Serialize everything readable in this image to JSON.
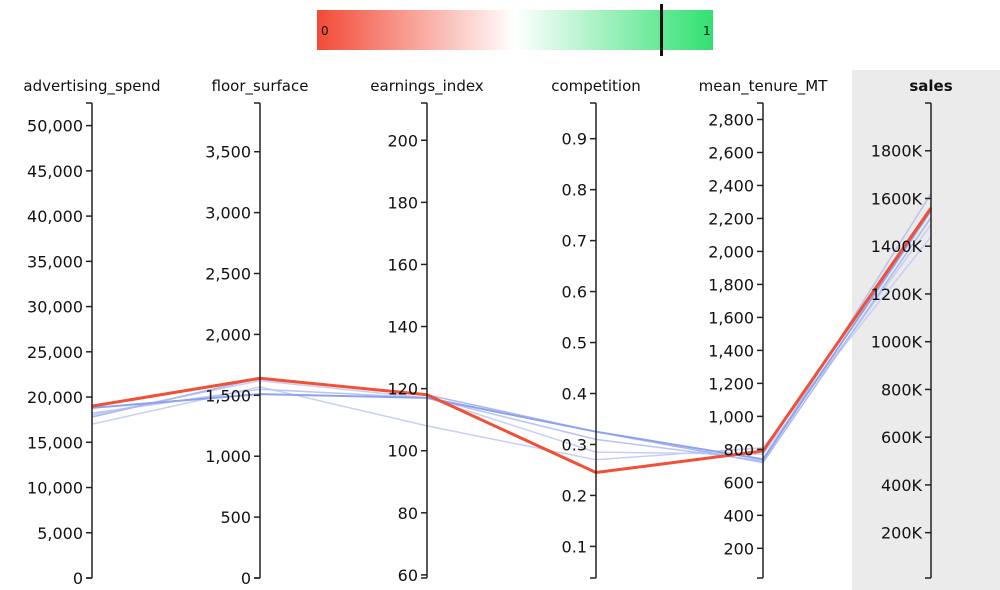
{
  "chart_data": {
    "type": "parallel_coordinates",
    "colorbar": {
      "min_label": "0",
      "max_label": "1",
      "marker_value": 0.87,
      "stops": [
        "#f24a37",
        "#ffffff",
        "#31e072"
      ]
    },
    "highlighted_axis": "sales",
    "axes": [
      {
        "key": "advertising_spend",
        "label": "advertising_spend",
        "range": [
          0,
          52500
        ],
        "ticks": [
          0,
          5000,
          10000,
          15000,
          20000,
          25000,
          30000,
          35000,
          40000,
          45000,
          50000
        ],
        "tick_labels": [
          "0",
          "5,000",
          "10,000",
          "15,000",
          "20,000",
          "25,000",
          "30,000",
          "35,000",
          "40,000",
          "45,000",
          "50,000"
        ],
        "tick_side": "left"
      },
      {
        "key": "floor_surface",
        "label": "floor_surface",
        "range": [
          0,
          3900
        ],
        "ticks": [
          0,
          500,
          1000,
          1500,
          2000,
          2500,
          3000,
          3500
        ],
        "tick_labels": [
          "0",
          "500",
          "1,000",
          "1,500",
          "2,000",
          "2,500",
          "3,000",
          "3,500"
        ],
        "tick_side": "left"
      },
      {
        "key": "earnings_index",
        "label": "earnings_index",
        "range": [
          59,
          212
        ],
        "ticks": [
          60,
          80,
          100,
          120,
          140,
          160,
          180,
          200
        ],
        "tick_labels": [
          "60",
          "80",
          "100",
          "120",
          "140",
          "160",
          "180",
          "200"
        ],
        "tick_side": "left"
      },
      {
        "key": "competition",
        "label": "competition",
        "range": [
          0.038,
          0.97
        ],
        "ticks": [
          0.1,
          0.2,
          0.3,
          0.4,
          0.5,
          0.6,
          0.7,
          0.8,
          0.9
        ],
        "tick_labels": [
          "0.1",
          "0.2",
          "0.3",
          "0.4",
          "0.5",
          "0.6",
          "0.7",
          "0.8",
          "0.9"
        ],
        "tick_side": "left"
      },
      {
        "key": "mean_tenure_MT",
        "label": "mean_tenure_MT",
        "range": [
          20,
          2900
        ],
        "ticks": [
          200,
          400,
          600,
          800,
          1000,
          1200,
          1400,
          1600,
          1800,
          2000,
          2200,
          2400,
          2600,
          2800
        ],
        "tick_labels": [
          "200",
          "400",
          "600",
          "800",
          "1,000",
          "1,200",
          "1,400",
          "1,600",
          "1,800",
          "2,000",
          "2,200",
          "2,400",
          "2,600",
          "2,800"
        ],
        "tick_side": "left"
      },
      {
        "key": "sales",
        "label": "sales",
        "range": [
          10000,
          2000000
        ],
        "ticks": [
          200000,
          400000,
          600000,
          800000,
          1000000,
          1200000,
          1400000,
          1600000,
          1800000
        ],
        "tick_labels": [
          "200K",
          "400K",
          "600K",
          "800K",
          "1000K",
          "1200K",
          "1400K",
          "1600K",
          "1800K"
        ],
        "tick_side": "left"
      }
    ],
    "lines": [
      {
        "values": [
          17000,
          1570,
          108,
          0.27,
          810,
          1440000
        ],
        "color": "#c6cff4",
        "width": 1.5
      },
      {
        "values": [
          18000,
          1620,
          117,
          0.285,
          770,
          1490000
        ],
        "color": "#c6cff4",
        "width": 1.5
      },
      {
        "values": [
          18200,
          1550,
          117,
          0.31,
          730,
          1620000
        ],
        "color": "#b8c4f2",
        "width": 1.5
      },
      {
        "values": [
          17800,
          1640,
          118,
          0.325,
          720,
          1520000
        ],
        "color": "#aab8ef",
        "width": 1.5
      },
      {
        "values": [
          18800,
          1510,
          117,
          0.325,
          740,
          1550000
        ],
        "color": "#8ea3ec",
        "width": 2
      },
      {
        "values": [
          19000,
          1640,
          118,
          0.245,
          790,
          1560000
        ],
        "color": "#f05036",
        "width": 3
      }
    ]
  }
}
